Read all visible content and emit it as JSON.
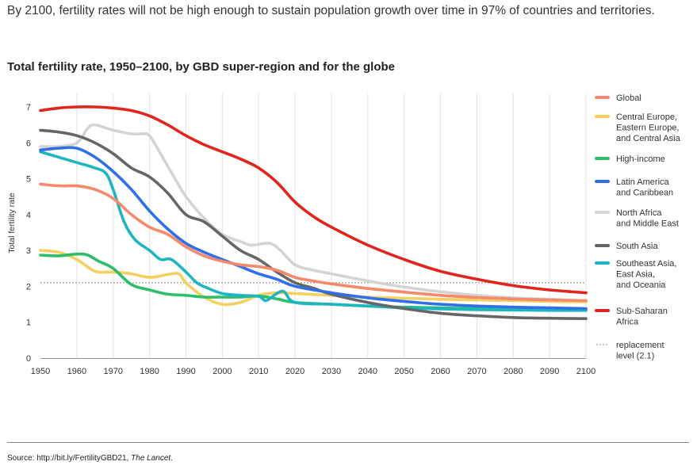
{
  "headline": "By 2100, fertility rates will not be high enough to sustain population growth over time in 97% of countries and territories.",
  "source": {
    "prefix": "Source: http://bit.ly/FertilityGBD21, ",
    "journal": "The Lancet",
    "suffix": "."
  },
  "chart_data": {
    "type": "line",
    "title": "Total fertility rate, 1950–2100, by GBD super-region and for the globe",
    "xlabel": "",
    "ylabel": "Total fertility rate",
    "xlim": [
      1950,
      2100
    ],
    "ylim": [
      0,
      7
    ],
    "x_ticks": [
      1950,
      1960,
      1970,
      1980,
      1990,
      2000,
      2010,
      2020,
      2030,
      2040,
      2050,
      2060,
      2070,
      2080,
      2090,
      2100
    ],
    "y_ticks": [
      0,
      1,
      2,
      3,
      4,
      5,
      6,
      7
    ],
    "grid": "vertical",
    "legend_position": "right",
    "replacement": {
      "label": "replacement level (2.1)",
      "lines": [
        "replacement",
        "level (2.1)"
      ],
      "value": 2.1,
      "color": "#888888"
    },
    "series": [
      {
        "name": "Global",
        "lines": [
          "Global"
        ],
        "color": "#F4896B",
        "points": [
          [
            1950,
            4.85
          ],
          [
            1955,
            4.8
          ],
          [
            1960,
            4.8
          ],
          [
            1965,
            4.7
          ],
          [
            1970,
            4.45
          ],
          [
            1975,
            4.0
          ],
          [
            1980,
            3.65
          ],
          [
            1985,
            3.45
          ],
          [
            1990,
            3.1
          ],
          [
            1995,
            2.85
          ],
          [
            2000,
            2.7
          ],
          [
            2005,
            2.6
          ],
          [
            2010,
            2.55
          ],
          [
            2015,
            2.45
          ],
          [
            2020,
            2.25
          ],
          [
            2025,
            2.15
          ],
          [
            2030,
            2.07
          ],
          [
            2040,
            1.94
          ],
          [
            2050,
            1.84
          ],
          [
            2060,
            1.75
          ],
          [
            2070,
            1.69
          ],
          [
            2080,
            1.65
          ],
          [
            2090,
            1.62
          ],
          [
            2100,
            1.6
          ]
        ]
      },
      {
        "name": "Central Europe, Eastern Europe, and Central Asia",
        "lines": [
          "Central Europe,",
          "Eastern Europe,",
          "and Central Asia"
        ],
        "color": "#F5CF5F",
        "points": [
          [
            1950,
            3.0
          ],
          [
            1955,
            2.95
          ],
          [
            1960,
            2.75
          ],
          [
            1965,
            2.42
          ],
          [
            1970,
            2.4
          ],
          [
            1975,
            2.35
          ],
          [
            1980,
            2.25
          ],
          [
            1985,
            2.33
          ],
          [
            1988,
            2.35
          ],
          [
            1990,
            2.1
          ],
          [
            1995,
            1.7
          ],
          [
            2000,
            1.5
          ],
          [
            2005,
            1.55
          ],
          [
            2010,
            1.75
          ],
          [
            2015,
            1.82
          ],
          [
            2020,
            1.8
          ],
          [
            2030,
            1.75
          ],
          [
            2040,
            1.7
          ],
          [
            2050,
            1.67
          ],
          [
            2060,
            1.64
          ],
          [
            2070,
            1.62
          ],
          [
            2080,
            1.6
          ],
          [
            2090,
            1.58
          ],
          [
            2100,
            1.57
          ]
        ]
      },
      {
        "name": "High-income",
        "lines": [
          "High-income"
        ],
        "color": "#2BBF6A",
        "points": [
          [
            1950,
            2.87
          ],
          [
            1955,
            2.85
          ],
          [
            1960,
            2.9
          ],
          [
            1963,
            2.87
          ],
          [
            1966,
            2.7
          ],
          [
            1970,
            2.5
          ],
          [
            1975,
            2.05
          ],
          [
            1980,
            1.9
          ],
          [
            1985,
            1.78
          ],
          [
            1990,
            1.75
          ],
          [
            1995,
            1.7
          ],
          [
            2000,
            1.7
          ],
          [
            2005,
            1.7
          ],
          [
            2010,
            1.73
          ],
          [
            2015,
            1.65
          ],
          [
            2020,
            1.55
          ],
          [
            2030,
            1.5
          ],
          [
            2040,
            1.45
          ],
          [
            2050,
            1.42
          ],
          [
            2060,
            1.4
          ],
          [
            2070,
            1.38
          ],
          [
            2080,
            1.37
          ],
          [
            2090,
            1.36
          ],
          [
            2100,
            1.35
          ]
        ]
      },
      {
        "name": "Latin America and Caribbean",
        "lines": [
          "Latin America",
          "and Caribbean"
        ],
        "color": "#2F6FE8",
        "points": [
          [
            1950,
            5.8
          ],
          [
            1955,
            5.85
          ],
          [
            1960,
            5.85
          ],
          [
            1965,
            5.6
          ],
          [
            1970,
            5.2
          ],
          [
            1975,
            4.7
          ],
          [
            1980,
            4.1
          ],
          [
            1985,
            3.6
          ],
          [
            1990,
            3.2
          ],
          [
            1995,
            2.95
          ],
          [
            2000,
            2.75
          ],
          [
            2005,
            2.55
          ],
          [
            2010,
            2.35
          ],
          [
            2015,
            2.2
          ],
          [
            2020,
            2.0
          ],
          [
            2030,
            1.82
          ],
          [
            2040,
            1.68
          ],
          [
            2050,
            1.58
          ],
          [
            2060,
            1.5
          ],
          [
            2070,
            1.45
          ],
          [
            2080,
            1.42
          ],
          [
            2090,
            1.4
          ],
          [
            2100,
            1.38
          ]
        ]
      },
      {
        "name": "North Africa and Middle East",
        "lines": [
          "North Africa",
          "and Middle East"
        ],
        "color": "#D4D4D4",
        "points": [
          [
            1950,
            5.9
          ],
          [
            1955,
            5.9
          ],
          [
            1960,
            6.0
          ],
          [
            1963,
            6.4
          ],
          [
            1965,
            6.5
          ],
          [
            1970,
            6.35
          ],
          [
            1975,
            6.25
          ],
          [
            1978,
            6.25
          ],
          [
            1980,
            6.2
          ],
          [
            1983,
            5.7
          ],
          [
            1987,
            5.0
          ],
          [
            1990,
            4.5
          ],
          [
            1995,
            3.9
          ],
          [
            2000,
            3.45
          ],
          [
            2005,
            3.25
          ],
          [
            2008,
            3.15
          ],
          [
            2013,
            3.2
          ],
          [
            2016,
            3.0
          ],
          [
            2020,
            2.6
          ],
          [
            2025,
            2.45
          ],
          [
            2030,
            2.35
          ],
          [
            2040,
            2.15
          ],
          [
            2050,
            1.98
          ],
          [
            2060,
            1.85
          ],
          [
            2070,
            1.75
          ],
          [
            2080,
            1.68
          ],
          [
            2090,
            1.64
          ],
          [
            2100,
            1.6
          ]
        ]
      },
      {
        "name": "South Asia",
        "lines": [
          "South Asia"
        ],
        "color": "#666666",
        "points": [
          [
            1950,
            6.35
          ],
          [
            1955,
            6.3
          ],
          [
            1960,
            6.2
          ],
          [
            1965,
            6.0
          ],
          [
            1970,
            5.7
          ],
          [
            1975,
            5.3
          ],
          [
            1980,
            5.05
          ],
          [
            1985,
            4.6
          ],
          [
            1990,
            4.0
          ],
          [
            1995,
            3.8
          ],
          [
            2000,
            3.4
          ],
          [
            2005,
            3.0
          ],
          [
            2010,
            2.75
          ],
          [
            2015,
            2.4
          ],
          [
            2020,
            2.1
          ],
          [
            2025,
            1.95
          ],
          [
            2030,
            1.78
          ],
          [
            2040,
            1.55
          ],
          [
            2050,
            1.38
          ],
          [
            2060,
            1.25
          ],
          [
            2070,
            1.18
          ],
          [
            2080,
            1.13
          ],
          [
            2090,
            1.11
          ],
          [
            2100,
            1.1
          ]
        ]
      },
      {
        "name": "Southeast Asia, East Asia, and Oceania",
        "lines": [
          "Southeast Asia,",
          "East Asia,",
          "and Oceania"
        ],
        "color": "#1DB5C0",
        "points": [
          [
            1950,
            5.75
          ],
          [
            1955,
            5.6
          ],
          [
            1960,
            5.45
          ],
          [
            1965,
            5.3
          ],
          [
            1968,
            5.15
          ],
          [
            1970,
            4.7
          ],
          [
            1973,
            3.8
          ],
          [
            1976,
            3.3
          ],
          [
            1980,
            3.0
          ],
          [
            1983,
            2.75
          ],
          [
            1986,
            2.75
          ],
          [
            1990,
            2.4
          ],
          [
            1993,
            2.1
          ],
          [
            1996,
            1.95
          ],
          [
            2000,
            1.8
          ],
          [
            2005,
            1.75
          ],
          [
            2010,
            1.72
          ],
          [
            2012,
            1.6
          ],
          [
            2015,
            1.8
          ],
          [
            2017,
            1.85
          ],
          [
            2020,
            1.55
          ],
          [
            2030,
            1.5
          ],
          [
            2040,
            1.45
          ],
          [
            2050,
            1.4
          ],
          [
            2060,
            1.37
          ],
          [
            2070,
            1.35
          ],
          [
            2080,
            1.34
          ],
          [
            2090,
            1.33
          ],
          [
            2100,
            1.33
          ]
        ]
      },
      {
        "name": "Sub-Saharan Africa",
        "lines": [
          "Sub-Saharan",
          "Africa"
        ],
        "color": "#E0241E",
        "points": [
          [
            1950,
            6.9
          ],
          [
            1955,
            6.97
          ],
          [
            1960,
            7.0
          ],
          [
            1965,
            7.0
          ],
          [
            1970,
            6.97
          ],
          [
            1975,
            6.9
          ],
          [
            1980,
            6.75
          ],
          [
            1985,
            6.5
          ],
          [
            1990,
            6.2
          ],
          [
            1995,
            5.95
          ],
          [
            2000,
            5.75
          ],
          [
            2005,
            5.55
          ],
          [
            2010,
            5.3
          ],
          [
            2015,
            4.9
          ],
          [
            2020,
            4.35
          ],
          [
            2025,
            3.95
          ],
          [
            2030,
            3.65
          ],
          [
            2040,
            3.15
          ],
          [
            2050,
            2.75
          ],
          [
            2060,
            2.42
          ],
          [
            2070,
            2.2
          ],
          [
            2080,
            2.02
          ],
          [
            2090,
            1.9
          ],
          [
            2100,
            1.82
          ]
        ]
      }
    ]
  }
}
